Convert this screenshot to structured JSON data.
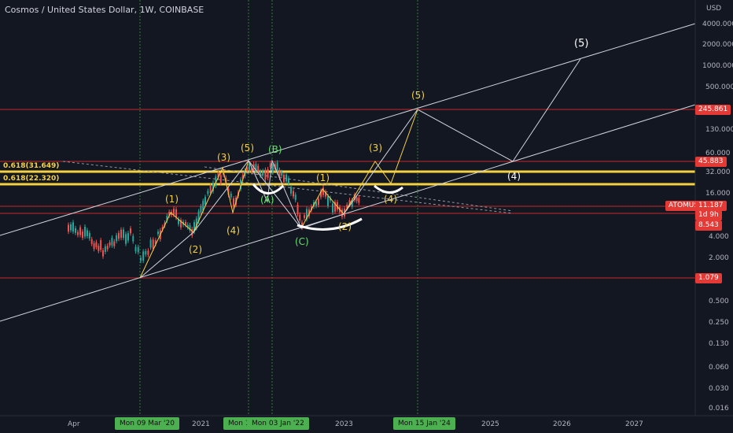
{
  "title": "Cosmos / United States Dollar, 1W, COINBASE",
  "currency": "USD",
  "price_axis": [
    "4000.000",
    "2000.000",
    "1000.000",
    "500.000",
    "130.000",
    "60.000",
    "32.000",
    "16.000",
    "4.000",
    "2.000",
    "0.500",
    "0.250",
    "0.130",
    "0.060",
    "0.030",
    "0.016"
  ],
  "fib_labels": [
    "0.618(31.649)",
    "0.618(22.320)"
  ],
  "price_tags": {
    "p1": {
      "text": "245.861",
      "color": "#e53935"
    },
    "p2": {
      "text": "45.883",
      "color": "#e53935"
    },
    "symbol": {
      "text": "ATOMUSD",
      "color": "#e53935"
    },
    "last": {
      "text": "11.187",
      "color": "#e53935"
    },
    "countdown": {
      "text": "1d 9h",
      "color": "#e53935"
    },
    "p3": {
      "text": "8.543",
      "color": "#e53935"
    },
    "p4": {
      "text": "1.079",
      "color": "#e53935"
    }
  },
  "time_axis": [
    "Apr",
    "2021",
    "2023",
    "2025",
    "2026",
    "2027"
  ],
  "time_tags": [
    "Mon 09 Mar '20",
    "Mon 1:",
    "Mon 03 Jan '22",
    "Mon 15 Jan '24"
  ],
  "waves_yellow": [
    "(1)",
    "(2)",
    "(3)",
    "(4)",
    "(5)",
    "(1)",
    "(2)",
    "(3)",
    "(4)",
    "(5)"
  ],
  "waves_green": [
    "(B)",
    "(A)",
    "(C)"
  ],
  "waves_white": [
    "(4)",
    "(5)"
  ],
  "colors": {
    "bg": "#131722",
    "up": "#26a69a",
    "down": "#ef5350",
    "yellow": "#f5d142",
    "green": "#66e26b",
    "red": "#e53935"
  }
}
